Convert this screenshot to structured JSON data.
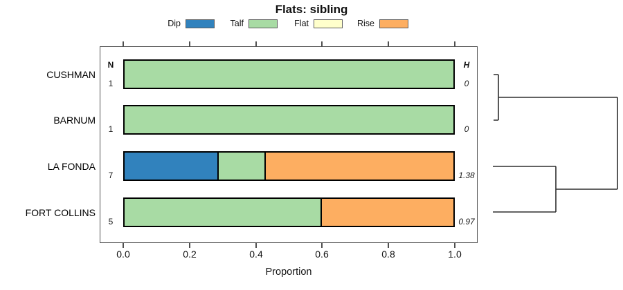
{
  "title": "Flats: sibling",
  "legend": [
    {
      "label": "Dip",
      "color": "#3182bd"
    },
    {
      "label": "Talf",
      "color": "#a8dba4"
    },
    {
      "label": "Flat",
      "color": "#ffffcc"
    },
    {
      "label": "Rise",
      "color": "#fdae61"
    }
  ],
  "columns": {
    "n_header": "N",
    "h_header": "H"
  },
  "xaxis": {
    "label": "Proportion",
    "ticks": [
      "0.0",
      "0.2",
      "0.4",
      "0.6",
      "0.8",
      "1.0"
    ]
  },
  "chart_data": {
    "type": "bar",
    "orientation": "horizontal",
    "stacked": true,
    "title": "Flats: sibling",
    "xlabel": "Proportion",
    "xlim": [
      0,
      1
    ],
    "xticks": [
      0.0,
      0.2,
      0.4,
      0.6,
      0.8,
      1.0
    ],
    "legend_position": "top",
    "categories": [
      "CUSHMAN",
      "BARNUM",
      "LA FONDA",
      "FORT COLLINS"
    ],
    "series_names": [
      "Dip",
      "Talf",
      "Flat",
      "Rise"
    ],
    "rows": [
      {
        "label": "CUSHMAN",
        "n": "1",
        "h": "0",
        "segments": [
          {
            "name": "Talf",
            "value": 1.0
          }
        ]
      },
      {
        "label": "BARNUM",
        "n": "1",
        "h": "0",
        "segments": [
          {
            "name": "Talf",
            "value": 1.0
          }
        ]
      },
      {
        "label": "LA FONDA",
        "n": "7",
        "h": "1.38",
        "segments": [
          {
            "name": "Dip",
            "value": 0.2857
          },
          {
            "name": "Talf",
            "value": 0.1429
          },
          {
            "name": "Rise",
            "value": 0.5714
          }
        ]
      },
      {
        "label": "FORT COLLINS",
        "n": "5",
        "h": "0.97",
        "segments": [
          {
            "name": "Talf",
            "value": 0.6
          },
          {
            "name": "Rise",
            "value": 0.4
          }
        ]
      }
    ],
    "dendrogram_clusters": [
      [
        "CUSHMAN",
        "BARNUM"
      ],
      [
        "LA FONDA",
        "FORT COLLINS"
      ]
    ]
  }
}
